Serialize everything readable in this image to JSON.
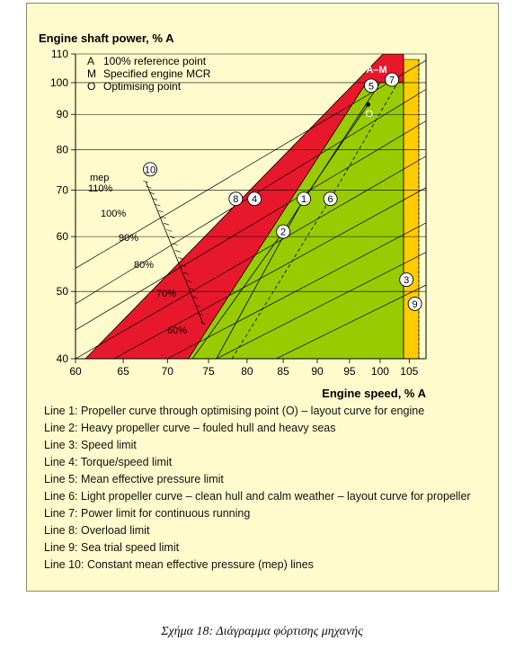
{
  "colors": {
    "panel": "#FFFBCC",
    "green_zone": "#99CC00",
    "red_band": "#E8182C",
    "yellow_band": "#FFCC00",
    "grid": "#000000"
  },
  "chart_data": {
    "type": "line",
    "y_scale": "log",
    "x_scale": "log",
    "ylabel": "Engine shaft power, % A",
    "xlabel": "Engine speed, % A",
    "xlim": [
      60,
      108
    ],
    "ylim": [
      40,
      110
    ],
    "x_ticks": [
      60,
      65,
      70,
      75,
      80,
      85,
      90,
      95,
      100,
      105
    ],
    "y_ticks": [
      40,
      50,
      60,
      70,
      80,
      90,
      100,
      110
    ],
    "grid_lines_y": [
      110,
      100,
      90,
      80,
      70,
      60,
      50,
      40
    ],
    "points_legend": [
      {
        "key": "A",
        "text": "100% reference point"
      },
      {
        "key": "M",
        "text": "Specified engine MCR"
      },
      {
        "key": "O",
        "text": "Optimising point"
      }
    ],
    "point_labels": {
      "am": "A–M",
      "o": "O"
    },
    "reference_points": [
      {
        "label": "A–M",
        "x": 100,
        "y": 100
      },
      {
        "label": "O",
        "x": 98,
        "y": 93
      }
    ],
    "mep_label": "mep",
    "mep_lines": [
      {
        "label": "110%",
        "mep": 110
      },
      {
        "label": "100%",
        "mep": 100
      },
      {
        "label": "90%",
        "mep": 90
      },
      {
        "label": "80%",
        "mep": 80
      },
      {
        "label": "70%",
        "mep": 70
      },
      {
        "label": "60%",
        "mep": 60
      }
    ],
    "line_markers": [
      {
        "label": "1",
        "x": 88,
        "y": 68
      },
      {
        "label": "2",
        "x": 85,
        "y": 61
      },
      {
        "label": "3",
        "x": 104.5,
        "y": 52
      },
      {
        "label": "4",
        "x": 81,
        "y": 68
      },
      {
        "label": "5",
        "x": 98.5,
        "y": 99
      },
      {
        "label": "6",
        "x": 92,
        "y": 68
      },
      {
        "label": "7",
        "x": 102,
        "y": 101
      },
      {
        "label": "8",
        "x": 78.5,
        "y": 68
      },
      {
        "label": "9",
        "x": 106,
        "y": 48
      },
      {
        "label": "10",
        "x": 68,
        "y": 75
      }
    ],
    "line_descriptions": [
      "Line 1: Propeller curve through optimising point (O) – layout curve for engine",
      "Line 2: Heavy propeller curve – fouled hull and heavy seas",
      "Line 3: Speed limit",
      "Line 4: Torque/speed limit",
      "Line 5: Mean effective pressure limit",
      "Line 6: Light propeller curve – clean hull and calm weather – layout curve for propeller",
      "Line 7: Power limit for continuous running",
      "Line 8: Overload limit",
      "Line 9: Sea trial speed limit",
      "Line 10: Constant mean effective pressure (mep) lines"
    ]
  },
  "caption": "Σχήμα 18:  Διάγραμμα φόρτισης μηχανής"
}
